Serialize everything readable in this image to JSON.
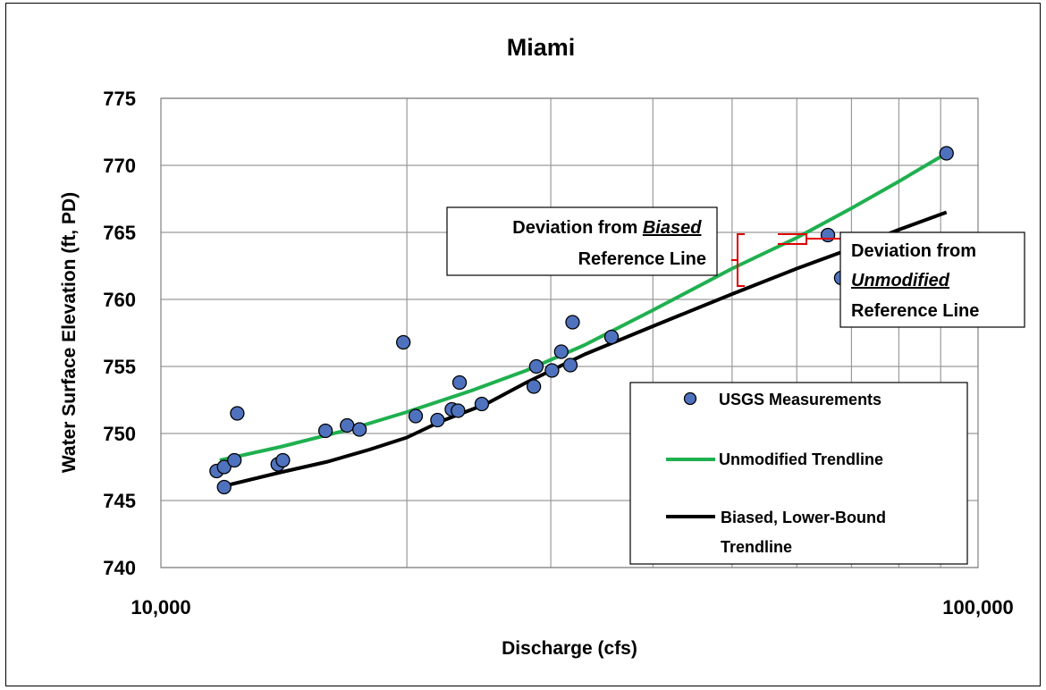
{
  "chart_data": {
    "type": "scatter",
    "title": "Miami",
    "xlabel": "Discharge (cfs)",
    "ylabel": "Water Surface Elevation (ft, PD)",
    "xscale": "log",
    "xlim": [
      10000,
      100000
    ],
    "ylim": [
      740,
      775
    ],
    "x_tick_labels": [
      "10,000",
      "100,000"
    ],
    "y_ticks": [
      740,
      745,
      750,
      755,
      760,
      765,
      770,
      775
    ],
    "grid": true,
    "legend_position": "lower-right, inside plot",
    "series": [
      {
        "name": "USGS Measurements",
        "kind": "markers",
        "color": "#4f72be",
        "points": [
          [
            11700,
            747.2
          ],
          [
            11950,
            747.5
          ],
          [
            11950,
            746.0
          ],
          [
            12300,
            748.0
          ],
          [
            12400,
            751.5
          ],
          [
            13900,
            747.7
          ],
          [
            14100,
            748.0
          ],
          [
            15900,
            750.2
          ],
          [
            16900,
            750.6
          ],
          [
            17500,
            750.3
          ],
          [
            19800,
            756.8
          ],
          [
            20500,
            751.3
          ],
          [
            21800,
            751.0
          ],
          [
            22700,
            751.8
          ],
          [
            23100,
            751.7
          ],
          [
            23200,
            753.8
          ],
          [
            24700,
            752.2
          ],
          [
            28600,
            753.5
          ],
          [
            28800,
            755.0
          ],
          [
            30100,
            754.7
          ],
          [
            30900,
            756.1
          ],
          [
            31700,
            755.1
          ],
          [
            31900,
            758.3
          ],
          [
            35600,
            757.2
          ],
          [
            65500,
            764.8
          ],
          [
            68000,
            761.6
          ],
          [
            91500,
            770.9
          ]
        ]
      },
      {
        "name": "Unmodified Trendline",
        "kind": "line",
        "color": "#1fb04f",
        "points": [
          [
            11800,
            748.0
          ],
          [
            14000,
            749.0
          ],
          [
            17000,
            750.3
          ],
          [
            20000,
            751.6
          ],
          [
            24000,
            753.2
          ],
          [
            28000,
            754.7
          ],
          [
            33000,
            756.6
          ],
          [
            40000,
            759.2
          ],
          [
            50000,
            762.3
          ],
          [
            60000,
            764.6
          ],
          [
            70000,
            766.8
          ],
          [
            80000,
            768.8
          ],
          [
            91500,
            770.9
          ]
        ]
      },
      {
        "name": "Biased, Lower-Bound Trendline",
        "kind": "line",
        "color": "#000000",
        "points": [
          [
            11800,
            746.0
          ],
          [
            14000,
            747.1
          ],
          [
            16000,
            747.9
          ],
          [
            18000,
            748.8
          ],
          [
            20000,
            749.7
          ],
          [
            22000,
            750.9
          ],
          [
            25000,
            752.2
          ],
          [
            28000,
            753.8
          ],
          [
            33000,
            755.9
          ],
          [
            40000,
            758.0
          ],
          [
            50000,
            760.4
          ],
          [
            60000,
            762.3
          ],
          [
            70000,
            763.8
          ],
          [
            80000,
            765.2
          ],
          [
            91500,
            766.5
          ]
        ]
      }
    ],
    "annotations": [
      {
        "lines": [
          "Deviation from ",
          "Biased",
          "Reference Line"
        ],
        "emph": "Biased"
      },
      {
        "lines": [
          "Deviation from",
          "Unmodified",
          "Reference Line"
        ],
        "emph": "Unmodified"
      }
    ]
  }
}
